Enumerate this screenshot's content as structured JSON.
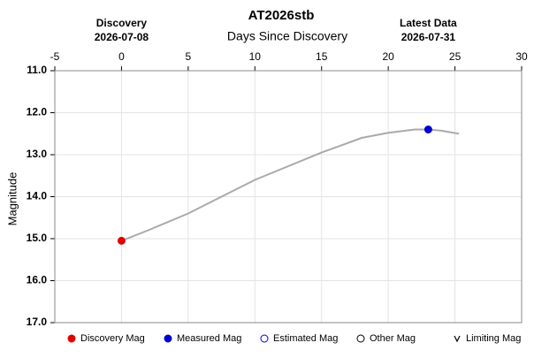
{
  "chart_data": {
    "type": "scatter",
    "title": "AT2026stb",
    "x_label": "Days Since Discovery",
    "y_label": "Magnitude",
    "annotations": [
      {
        "label": "Discovery",
        "date": "2026-07-08",
        "x": 0
      },
      {
        "label": "Latest Data",
        "date": "2026-07-31",
        "x": 23
      }
    ],
    "xlim": [
      -5,
      30
    ],
    "xticks": [
      -5,
      0,
      5,
      10,
      15,
      20,
      25,
      30
    ],
    "ylim": [
      11,
      17
    ],
    "y_inverted": true,
    "yticks": [
      {
        "value": 11,
        "label": "11.0"
      },
      {
        "value": 12,
        "label": "12.0"
      },
      {
        "value": 13,
        "label": "13.0"
      },
      {
        "value": 14,
        "label": "14.0"
      },
      {
        "value": 15,
        "label": "15.0"
      },
      {
        "value": 16,
        "label": "16.0"
      },
      {
        "value": 17,
        "label": "17.0"
      }
    ],
    "grid": true,
    "curve": {
      "color": "#aaaaaa",
      "x": [
        0,
        2,
        5,
        10,
        15,
        18,
        20,
        22,
        23,
        24,
        25.3
      ],
      "values": [
        15.05,
        14.8,
        14.4,
        13.6,
        12.95,
        12.6,
        12.48,
        12.4,
        12.4,
        12.43,
        12.5
      ]
    },
    "series": [
      {
        "name": "Discovery Mag",
        "color": "#e00000",
        "marker": "filled",
        "x": [
          0
        ],
        "values": [
          15.05
        ]
      },
      {
        "name": "Measured Mag",
        "color": "#0000d0",
        "marker": "filled",
        "x": [
          23
        ],
        "values": [
          12.4
        ]
      },
      {
        "name": "Estimated Mag",
        "color": "#0000d0",
        "marker": "open",
        "x": [],
        "values": []
      },
      {
        "name": "Other Mag",
        "color": "#000000",
        "marker": "open",
        "x": [],
        "values": []
      },
      {
        "name": "Limiting Mag",
        "color": "#000000",
        "marker": "chevron",
        "x": [],
        "values": []
      }
    ]
  }
}
